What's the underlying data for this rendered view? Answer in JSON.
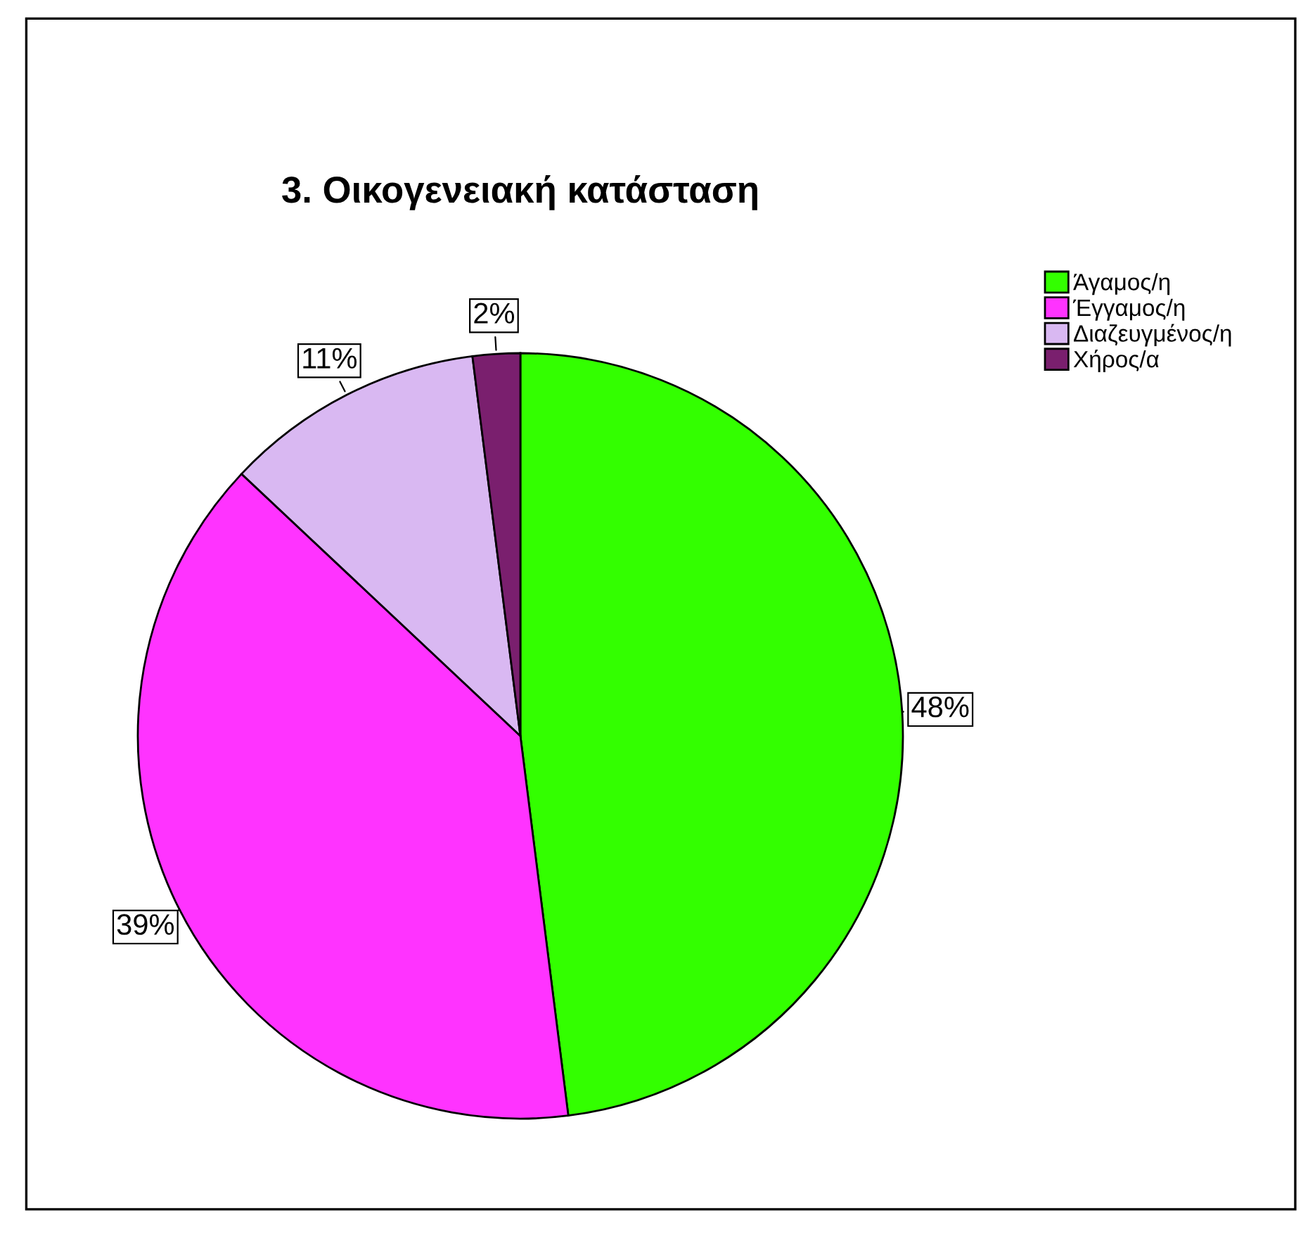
{
  "chart_data": {
    "type": "pie",
    "title": "3. Οικογενειακή κατάσταση",
    "categories": [
      "Άγαμος/η",
      "Έγγαμος/η",
      "Διαζευγμένος/η",
      "Χήρος/α"
    ],
    "values": [
      48,
      39,
      11,
      2
    ],
    "colors": [
      "#33ff00",
      "#ff33ff",
      "#d9b8f2",
      "#7a1f6e"
    ],
    "value_labels": [
      "48%",
      "39%",
      "11%",
      "2%"
    ],
    "legend": "top right"
  }
}
